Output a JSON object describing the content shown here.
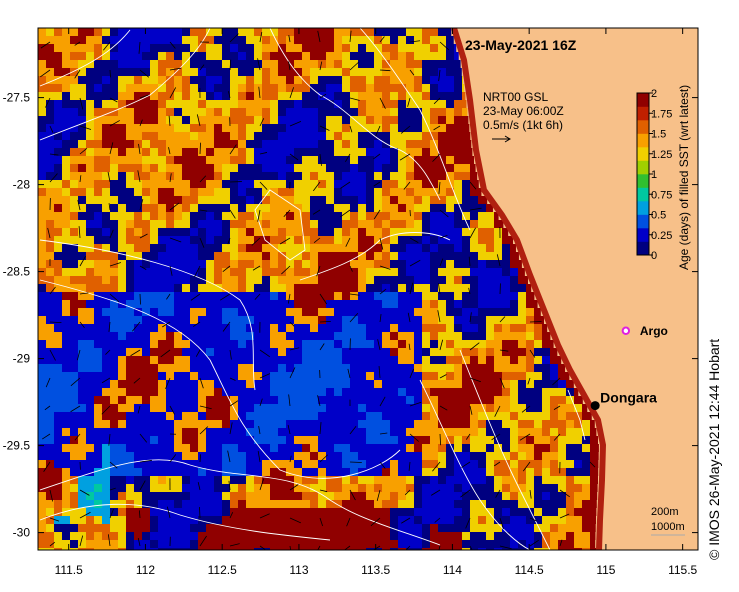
{
  "map": {
    "title": "23-May-2021 16Z",
    "x_ticks": [
      111.5,
      112,
      112.5,
      113,
      113.5,
      114,
      114.5,
      115,
      115.5
    ],
    "y_ticks": [
      -27.5,
      -28,
      -28.5,
      -29,
      -29.5,
      -30
    ],
    "x_tick_labels": [
      "111.5",
      "112",
      "112.5",
      "113",
      "113.5",
      "114",
      "114.5",
      "115",
      "115.5"
    ],
    "y_tick_labels": [
      "-27.5",
      "-28",
      "-28.5",
      "-29",
      "-29.5",
      "-30"
    ],
    "xlim": [
      111.3,
      115.6
    ],
    "ylim": [
      -30.1,
      -27.1
    ],
    "land_color": "#f7c089",
    "coast_color": "#b02010"
  },
  "current_legend": {
    "line1": "NRT00 GSL",
    "line2": "23-May 06:00Z",
    "line3": "0.5m/s (1kt 6h)"
  },
  "colorbar": {
    "ticks": [
      "2",
      "1.75",
      "1.5",
      "1.25",
      "1",
      "0.75",
      "0.5",
      "0.25",
      "0"
    ],
    "label": "Age (days) of filled SST (wrt latest)",
    "colors": [
      "#000080",
      "#0000c8",
      "#0050e0",
      "#00a0e0",
      "#00c8a0",
      "#30c030",
      "#a0d000",
      "#f0d000",
      "#f8a000",
      "#e06000",
      "#c02000",
      "#900000"
    ]
  },
  "places": [
    {
      "name": "Dongara",
      "lon": 114.93,
      "lat": -29.27
    },
    {
      "name": "Argo",
      "lon": 115.13,
      "lat": -28.84
    }
  ],
  "depth_legend": {
    "line1": "200m",
    "line2": "1000m"
  },
  "credit": "©  IMOS 26-May-2021 12:44 Hobart"
}
